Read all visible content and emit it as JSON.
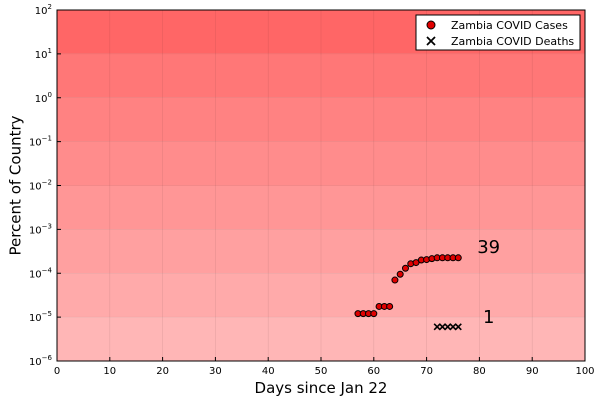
{
  "chart_data": {
    "type": "scatter",
    "title": "",
    "xlabel": "Days since Jan 22",
    "ylabel": "Percent of Country",
    "xlim": [
      0,
      100
    ],
    "ylim_log10": [
      -6,
      2
    ],
    "y_scale": "log10",
    "grid": true,
    "legend_position": "top-right",
    "x_ticks": [
      0,
      10,
      20,
      30,
      40,
      50,
      60,
      70,
      80,
      90,
      100
    ],
    "y_ticks": [
      {
        "base": "10",
        "exp": "−6",
        "value": -6
      },
      {
        "base": "10",
        "exp": "−5",
        "value": -5
      },
      {
        "base": "10",
        "exp": "−4",
        "value": -4
      },
      {
        "base": "10",
        "exp": "−3",
        "value": -3
      },
      {
        "base": "10",
        "exp": "−2",
        "value": -2
      },
      {
        "base": "10",
        "exp": "−1",
        "value": -1
      },
      {
        "base": "10",
        "exp": "0",
        "value": 0
      },
      {
        "base": "10",
        "exp": "1",
        "value": 1
      },
      {
        "base": "10",
        "exp": "2",
        "value": 2
      }
    ],
    "series": [
      {
        "name": "Zambia COVID Cases",
        "marker": "circle",
        "color": "#e00000",
        "x": [
          57,
          58,
          59,
          60,
          61,
          62,
          63,
          64,
          65,
          66,
          67,
          68,
          69,
          70,
          71,
          72,
          73,
          74,
          75,
          76
        ],
        "y": [
          1.2e-05,
          1.2e-05,
          1.2e-05,
          1.2e-05,
          1.75e-05,
          1.75e-05,
          1.75e-05,
          7e-05,
          9.5e-05,
          0.00013,
          0.000165,
          0.000175,
          0.0002,
          0.000205,
          0.000215,
          0.000225,
          0.000225,
          0.000225,
          0.000225,
          0.000225
        ]
      },
      {
        "name": "Zambia COVID Deaths",
        "marker": "x",
        "color": "#000000",
        "x": [
          72,
          73,
          74,
          75,
          76
        ],
        "y": [
          6e-06,
          6e-06,
          6e-06,
          6e-06,
          6e-06
        ]
      }
    ],
    "annotations": [
      {
        "text": "39",
        "x": 81,
        "y": 0.0004
      },
      {
        "text": "1",
        "x": 81,
        "y": 1e-05
      }
    ],
    "band_colors": [
      "#ffb6b6",
      "#ffaaaa",
      "#ffa0a0",
      "#ff9696",
      "#ff8c8c",
      "#ff8282",
      "#ff7777",
      "#ff6666"
    ]
  }
}
